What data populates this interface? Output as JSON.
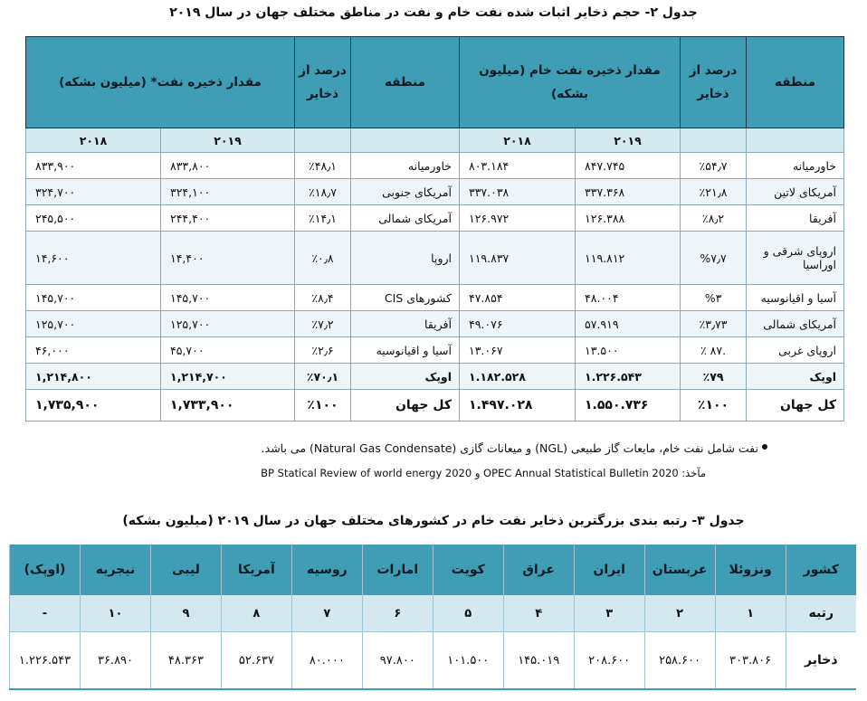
{
  "table2": {
    "title": "جدول ۲- حجم ذخایر اثبات شده نفت خام و نفت در مناطق مختلف جهان در سال ۲۰۱۹",
    "oil_section": {
      "h_region": "منطقه",
      "h_percent": "درصد از ذخایر",
      "h_amount": "مقدار ذخیره نفت خام (میلیون بشکه)"
    },
    "petroleum_section": {
      "h_region": "منطقه",
      "h_percent": "درصد از ذخایر",
      "h_amount": "مقدار ذخیره نفت* (میلیون بشکه)"
    },
    "year_2019": "۲۰۱۹",
    "year_2018": "۲۰۱۸",
    "crude_rows": [
      {
        "region": "خاورمیانه",
        "pct": "٪۵۴٫۷",
        "y2019": "۸۴۷.۷۴۵",
        "y2018": "۸۰۳.۱۸۴"
      },
      {
        "region": "آمریکای لاتین",
        "pct": "٪۲۱٫۸",
        "y2019": "۳۳۷.۳۶۸",
        "y2018": "۳۳۷.۰۳۸"
      },
      {
        "region": "آفریقا",
        "pct": "٪۸٫۲",
        "y2019": "۱۲۶.۳۸۸",
        "y2018": "۱۲۶.۹۷۲"
      },
      {
        "region": "اروپای شرقی و اوراسیا",
        "pct": "%۷٫۷",
        "y2019": "۱۱۹.۸۱۲",
        "y2018": "۱۱۹.۸۳۷"
      },
      {
        "region": "آسیا و اقیانوسیه",
        "pct": "%۳",
        "y2019": "۴۸.۰۰۴",
        "y2018": "۴۷.۸۵۴"
      },
      {
        "region": "آمریکای شمالی",
        "pct": "٪۳٫۷۳",
        "y2019": "۵۷.۹۱۹",
        "y2018": "۴۹.۰۷۶"
      },
      {
        "region": "اروپای غربی",
        "pct": ".۸۷ ٪",
        "y2019": "۱۳.۵۰۰",
        "y2018": "۱۳.۰۶۷"
      },
      {
        "region": "اوپک",
        "pct": "٪۷۹",
        "y2019": "۱.۲۲۶.۵۴۳",
        "y2018": "۱.۱۸۲.۵۲۸"
      },
      {
        "region": "کل جهان",
        "pct": "٪۱۰۰",
        "y2019": "۱.۵۵۰.۷۳۶",
        "y2018": "۱.۴۹۷.۰۲۸"
      }
    ],
    "petroleum_rows": [
      {
        "region": "خاورمیانه",
        "pct": "٪۴۸٫۱",
        "y2019": "۸۳۳,۸۰۰",
        "y2018": "۸۳۳,۹۰۰"
      },
      {
        "region": "آمریکای جنوبی",
        "pct": "٪۱۸٫۷",
        "y2019": "۳۲۴,۱۰۰",
        "y2018": "۳۲۴,۷۰۰"
      },
      {
        "region": "آمریکای شمالی",
        "pct": "٪۱۴٫۱",
        "y2019": "۲۴۴,۴۰۰",
        "y2018": "۲۴۵,۵۰۰"
      },
      {
        "region": "اروپا",
        "pct": "٪۰٫۸",
        "y2019": "۱۴,۴۰۰",
        "y2018": "۱۴,۶۰۰"
      },
      {
        "region": "کشورهای CIS",
        "pct": "٪۸٫۴",
        "y2019": "۱۴۵,۷۰۰",
        "y2018": "۱۴۵,۷۰۰"
      },
      {
        "region": "آفریقا",
        "pct": "٪۷٫۲",
        "y2019": "۱۲۵,۷۰۰",
        "y2018": "۱۲۵,۷۰۰"
      },
      {
        "region": "آسیا و اقیانوسیه",
        "pct": "٪۲٫۶",
        "y2019": "۴۵,۷۰۰",
        "y2018": "۴۶,۰۰۰"
      },
      {
        "region": "اوپک",
        "pct": "٪۷۰٫۱",
        "y2019": "۱,۲۱۴,۷۰۰",
        "y2018": "۱,۲۱۴,۸۰۰"
      },
      {
        "region": "کل جهان",
        "pct": "٪۱۰۰",
        "y2019": "۱,۷۳۳,۹۰۰",
        "y2018": "۱,۷۳۵,۹۰۰"
      }
    ],
    "footnote": "نفت شامل نفت خام، مایعات گاز طبیعی (NGL) و میعانات گازی (Natural Gas Condensate) می باشد.",
    "source": "مآخذ: OPEC Annual Statistical Bulletin 2020 و BP Statical Review of world energy 2020"
  },
  "table3": {
    "title": "جدول ۳- رتبه بندی بزرگترین ذخایر نفت خام در کشورهای مختلف جهان در سال ۲۰۱۹ (میلیون بشکه)",
    "label_country": "کشور",
    "label_rank": "رتبه",
    "label_reserves": "ذخایر",
    "countries": [
      "ونزوئلا",
      "عربستان",
      "ایران",
      "عراق",
      "کویت",
      "امارات",
      "روسیه",
      "آمریکا",
      "لیبی",
      "نیجریه",
      "(اوپک)"
    ],
    "ranks": [
      "۱",
      "۲",
      "۳",
      "۴",
      "۵",
      "۶",
      "۷",
      "۸",
      "۹",
      "۱۰",
      "-"
    ],
    "reserves": [
      "۳۰۳.۸۰۶",
      "۲۵۸.۶۰۰",
      "۲۰۸.۶۰۰",
      "۱۴۵.۰۱۹",
      "۱۰۱.۵۰۰",
      "۹۷.۸۰۰",
      "۸۰.۰۰۰",
      "۵۲.۶۳۷",
      "۴۸.۳۶۳",
      "۳۶.۸۹۰",
      "۱.۲۲۶.۵۴۳"
    ]
  }
}
